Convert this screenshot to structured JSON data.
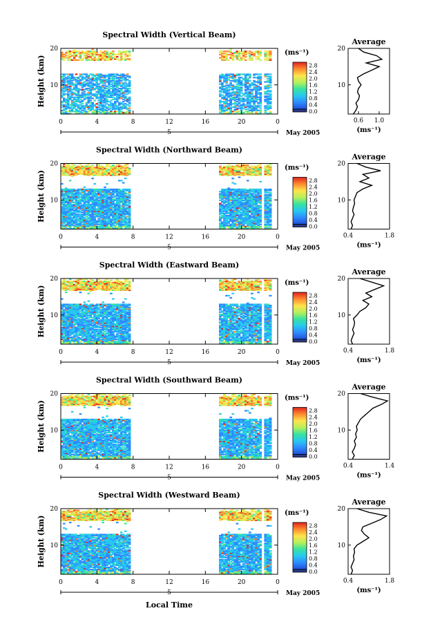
{
  "figure": {
    "xlabel": "Local Time",
    "date_label": "May 2005",
    "day_label": "5",
    "colorbar_unit": "(ms⁻¹)",
    "colorbar_ticks": [
      "0.0",
      "0.4",
      "0.8",
      "1.2",
      "1.6",
      "2.0",
      "2.4",
      "2.8"
    ],
    "colors": {
      "ramp": [
        "#2a3a8a",
        "#1f4fd8",
        "#2e8bff",
        "#27c8f0",
        "#37e3a0",
        "#b6f05a",
        "#ffe34a",
        "#ff8a2e",
        "#e0231e"
      ]
    }
  },
  "chart_data": [
    {
      "type": "heatmap",
      "title": "Spectral Width (Vertical Beam)",
      "ylabel": "Height (km)",
      "xlim": [
        0,
        24
      ],
      "ylim": [
        2,
        20
      ],
      "xticks": [
        "0",
        "4",
        "8",
        "12",
        "16",
        "20",
        "0"
      ],
      "yticks": [
        "10",
        "20"
      ],
      "data_segments_hours": [
        [
          0,
          7.7
        ],
        [
          17.5,
          22.2
        ],
        [
          22.5,
          23.3
        ]
      ],
      "profile": {
        "title": "Average",
        "xlabel": "(ms⁻¹)",
        "xticks": [
          "0.6",
          "1.0"
        ],
        "xlim": [
          0.4,
          1.2
        ],
        "heights": [
          2,
          3,
          4,
          5,
          6,
          7,
          8,
          9,
          10,
          11,
          12,
          13,
          14,
          15,
          16,
          17,
          18,
          19,
          20
        ],
        "values": [
          0.5,
          0.55,
          0.58,
          0.55,
          0.6,
          0.62,
          0.58,
          0.6,
          0.65,
          0.6,
          0.58,
          0.7,
          0.85,
          1.0,
          0.75,
          1.05,
          0.95,
          0.7,
          0.6
        ]
      }
    },
    {
      "type": "heatmap",
      "title": "Spectral Width (Northward Beam)",
      "ylabel": "Height (km)",
      "xlim": [
        0,
        24
      ],
      "ylim": [
        2,
        20
      ],
      "xticks": [
        "0",
        "4",
        "8",
        "12",
        "16",
        "20",
        "0"
      ],
      "yticks": [
        "10",
        "20"
      ],
      "data_segments_hours": [
        [
          0,
          7.7
        ],
        [
          17.5,
          22.2
        ],
        [
          22.5,
          23.3
        ]
      ],
      "profile": {
        "title": "Average",
        "xlabel": "(ms⁻¹)",
        "xticks": [
          "0.4",
          "1.8"
        ],
        "xlim": [
          0.4,
          1.8
        ],
        "heights": [
          2,
          3,
          4,
          5,
          6,
          7,
          8,
          9,
          10,
          11,
          12,
          13,
          14,
          15,
          16,
          17,
          18,
          19,
          20
        ],
        "values": [
          0.5,
          0.55,
          0.5,
          0.55,
          0.6,
          0.55,
          0.58,
          0.62,
          0.6,
          0.65,
          0.7,
          0.9,
          1.2,
          0.8,
          1.1,
          0.9,
          1.5,
          1.0,
          0.7
        ]
      }
    },
    {
      "type": "heatmap",
      "title": "Spectral Width (Eastward Beam)",
      "ylabel": "Height (km)",
      "xlim": [
        0,
        24
      ],
      "ylim": [
        2,
        20
      ],
      "xticks": [
        "0",
        "4",
        "8",
        "12",
        "16",
        "20",
        "0"
      ],
      "yticks": [
        "10",
        "20"
      ],
      "data_segments_hours": [
        [
          0,
          7.7
        ],
        [
          17.5,
          22.2
        ],
        [
          22.5,
          23.3
        ]
      ],
      "profile": {
        "title": "Average",
        "xlabel": "(ms⁻¹)",
        "xticks": [
          "0.4",
          "1.8"
        ],
        "xlim": [
          0.4,
          1.8
        ],
        "heights": [
          2,
          3,
          4,
          5,
          6,
          7,
          8,
          9,
          10,
          11,
          12,
          13,
          14,
          15,
          16,
          17,
          18,
          19,
          20
        ],
        "values": [
          0.55,
          0.5,
          0.55,
          0.6,
          0.55,
          0.6,
          0.62,
          0.58,
          0.7,
          0.8,
          1.0,
          1.1,
          0.9,
          1.2,
          1.0,
          1.3,
          1.6,
          1.2,
          0.8
        ]
      }
    },
    {
      "type": "heatmap",
      "title": "Spectral Width (Southward Beam)",
      "ylabel": "Height (km)",
      "xlim": [
        0,
        24
      ],
      "ylim": [
        2,
        20
      ],
      "xticks": [
        "0",
        "4",
        "8",
        "12",
        "16",
        "20",
        "0"
      ],
      "yticks": [
        "10",
        "20"
      ],
      "data_segments_hours": [
        [
          0,
          7.7
        ],
        [
          17.5,
          22.2
        ],
        [
          22.5,
          23.3
        ]
      ],
      "profile": {
        "title": "Average",
        "xlabel": "(ms⁻¹)",
        "xticks": [
          "0.4",
          "1.4"
        ],
        "xlim": [
          0.4,
          1.4
        ],
        "heights": [
          2,
          3,
          4,
          5,
          6,
          7,
          8,
          9,
          10,
          11,
          12,
          13,
          14,
          15,
          16,
          17,
          18,
          19,
          20
        ],
        "values": [
          0.5,
          0.55,
          0.5,
          0.55,
          0.58,
          0.55,
          0.6,
          0.58,
          0.62,
          0.6,
          0.65,
          0.7,
          0.8,
          0.9,
          1.0,
          1.2,
          1.35,
          1.0,
          0.7
        ]
      }
    },
    {
      "type": "heatmap",
      "title": "Spectral Width (Westward Beam)",
      "ylabel": "Height (km)",
      "xlim": [
        0,
        24
      ],
      "ylim": [
        2,
        20
      ],
      "xticks": [
        "0",
        "4",
        "8",
        "12",
        "16",
        "20",
        "0"
      ],
      "yticks": [
        "10",
        "20"
      ],
      "data_segments_hours": [
        [
          0,
          7.7
        ],
        [
          17.5,
          22.2
        ],
        [
          22.5,
          23.3
        ]
      ],
      "profile": {
        "title": "Average",
        "xlabel": "(ms⁻¹)",
        "xticks": [
          "0.4",
          "1.8"
        ],
        "xlim": [
          0.4,
          1.8
        ],
        "heights": [
          2,
          3,
          4,
          5,
          6,
          7,
          8,
          9,
          10,
          11,
          12,
          13,
          14,
          15,
          16,
          17,
          18,
          19,
          20
        ],
        "values": [
          0.5,
          0.55,
          0.5,
          0.55,
          0.6,
          0.58,
          0.62,
          0.6,
          0.7,
          0.9,
          1.1,
          0.95,
          0.85,
          0.9,
          1.2,
          1.5,
          1.7,
          1.1,
          0.7
        ]
      }
    }
  ]
}
